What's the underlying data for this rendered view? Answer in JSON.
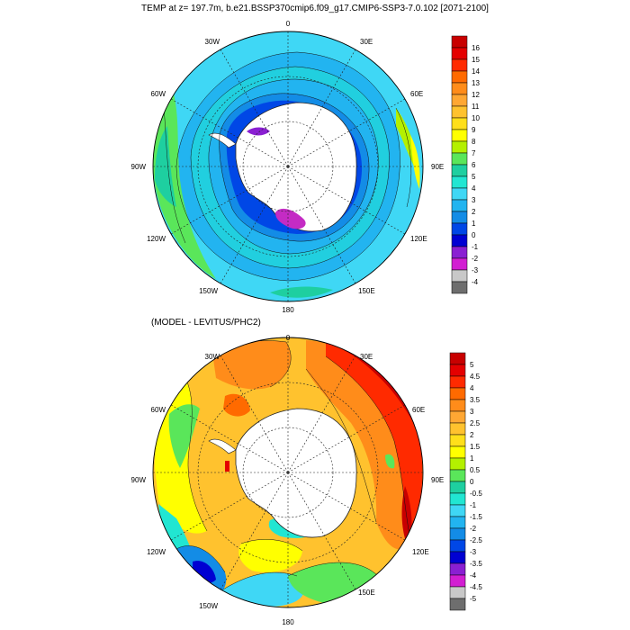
{
  "top_panel": {
    "title": "TEMP at z= 197.7m, b.e21.BSSP370cmip6.f09_g17.CMIP6-SSP3-7.0.102 [2071-2100]",
    "colorbar": {
      "labels": [
        "16",
        "15",
        "14",
        "13",
        "12",
        "11",
        "10",
        "9",
        "8",
        "7",
        "6",
        "5",
        "4",
        "3",
        "2",
        "1",
        "0",
        "-1",
        "-2",
        "-3",
        "-4"
      ],
      "colors": [
        "#c80000",
        "#e40000",
        "#ff2a00",
        "#ff6a00",
        "#ff8c1a",
        "#ffa733",
        "#ffc22e",
        "#ffdf1a",
        "#ffff00",
        "#b4f000",
        "#5ae65a",
        "#1ecfa0",
        "#21e6d2",
        "#3fd7f5",
        "#22b4f0",
        "#138ce6",
        "#0047e6",
        "#0000d2",
        "#8a1fd2",
        "#d21ed2",
        "#c8c8c8",
        "#6e6e6e"
      ]
    }
  },
  "bottom_panel": {
    "title": "(MODEL - LEVITUS/PHC2)",
    "colorbar": {
      "labels": [
        "5",
        "4.5",
        "4",
        "3.5",
        "3",
        "2.5",
        "2",
        "1.5",
        "1",
        "0.5",
        "0",
        "-0.5",
        "-1",
        "-1.5",
        "-2",
        "-2.5",
        "-3",
        "-3.5",
        "-4",
        "-4.5",
        "-5"
      ],
      "colors": [
        "#c80000",
        "#e40000",
        "#ff2a00",
        "#ff6a00",
        "#ff8c1a",
        "#ffa733",
        "#ffc22e",
        "#ffdf1a",
        "#ffff00",
        "#b4f000",
        "#5ae65a",
        "#1ecfa0",
        "#21e6d2",
        "#3fd7f5",
        "#22b4f0",
        "#138ce6",
        "#0047e6",
        "#0000d2",
        "#8a1fd2",
        "#d21ed2",
        "#c8c8c8",
        "#6e6e6e"
      ]
    }
  },
  "longitude_labels": {
    "lon_0": "0",
    "lon_30e": "30E",
    "lon_60e": "60E",
    "lon_90e": "90E",
    "lon_120e": "120E",
    "lon_150e": "150E",
    "lon_180": "180",
    "lon_150w": "150W",
    "lon_120w": "120W",
    "lon_90w": "90W",
    "lon_60w": "60W",
    "lon_30w": "30W"
  },
  "colors": {
    "land": "#ffffff",
    "ocean_top_base": "#22b4f0",
    "ocean_bottom_base": "#ffc22e"
  }
}
